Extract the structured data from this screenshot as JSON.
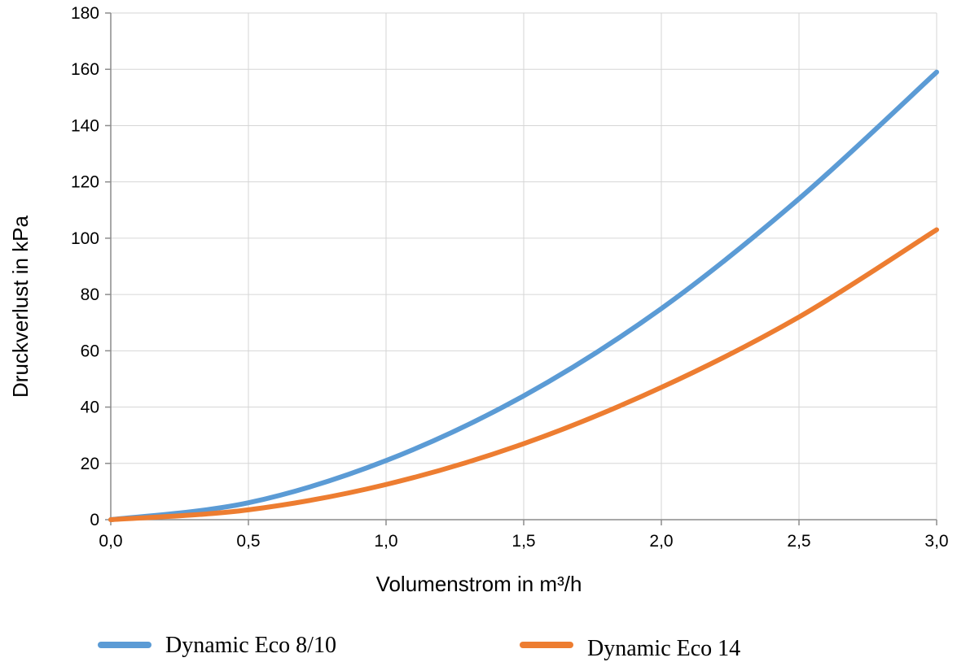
{
  "chart_data": {
    "type": "line",
    "xlabel": "Volumenstrom in m³/h",
    "ylabel": "Druckverlust in kPa",
    "xlim": [
      0,
      3
    ],
    "ylim": [
      0,
      180
    ],
    "x_ticks": [
      "0,0",
      "0,5",
      "1,0",
      "1,5",
      "2,0",
      "2,5",
      "3,0"
    ],
    "y_ticks": [
      "0",
      "20",
      "40",
      "60",
      "80",
      "100",
      "120",
      "140",
      "160",
      "180"
    ],
    "grid": true,
    "legend_position": "bottom",
    "series": [
      {
        "name": "Dynamic Eco 8/10",
        "color": "#5b9bd5",
        "x": [
          0,
          0.5,
          1.0,
          1.5,
          2.0,
          2.5,
          3.0
        ],
        "y": [
          0,
          6,
          21,
          44,
          75,
          114,
          159
        ]
      },
      {
        "name": "Dynamic Eco 14",
        "color": "#ed7d31",
        "x": [
          0,
          0.5,
          1.0,
          1.5,
          2.0,
          2.5,
          3.0
        ],
        "y": [
          0,
          3.5,
          12.5,
          27,
          47,
          72,
          103
        ]
      }
    ]
  }
}
